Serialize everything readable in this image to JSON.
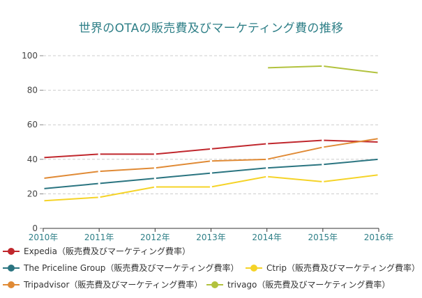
{
  "chart_data": {
    "type": "line",
    "title": "世界のOTAの販売費及びマーケティング費の推移",
    "categories": [
      "2010年",
      "2011年",
      "2012年",
      "2013年",
      "2014年",
      "2015年",
      "2016年"
    ],
    "ylim": [
      0,
      100
    ],
    "yticks": [
      "0",
      "20",
      "40",
      "60",
      "80",
      "100"
    ],
    "grid": true,
    "legend_position": "bottom",
    "series": [
      {
        "name": "Expedia（販売費及びマーケティング費率）",
        "color": "#c0272d",
        "values": [
          41,
          43,
          43,
          46,
          49,
          51,
          50
        ]
      },
      {
        "name": "The Priceline Group（販売費及びマーケティング費率）",
        "color": "#2a7480",
        "values": [
          23,
          26,
          29,
          32,
          35,
          37,
          40
        ]
      },
      {
        "name": "Ctrip（販売費及びマーケティング費率）",
        "color": "#f5d327",
        "values": [
          16,
          18,
          24,
          24,
          30,
          27,
          31
        ]
      },
      {
        "name": "Tripadvisor（販売費及びマーケティング費率）",
        "color": "#e08a35",
        "values": [
          29,
          33,
          35,
          39,
          40,
          47,
          52
        ]
      },
      {
        "name": "trivago（販売費及びマーケティング費率）",
        "color": "#b2c23d",
        "values": [
          null,
          null,
          null,
          null,
          93,
          94,
          90
        ]
      }
    ]
  }
}
